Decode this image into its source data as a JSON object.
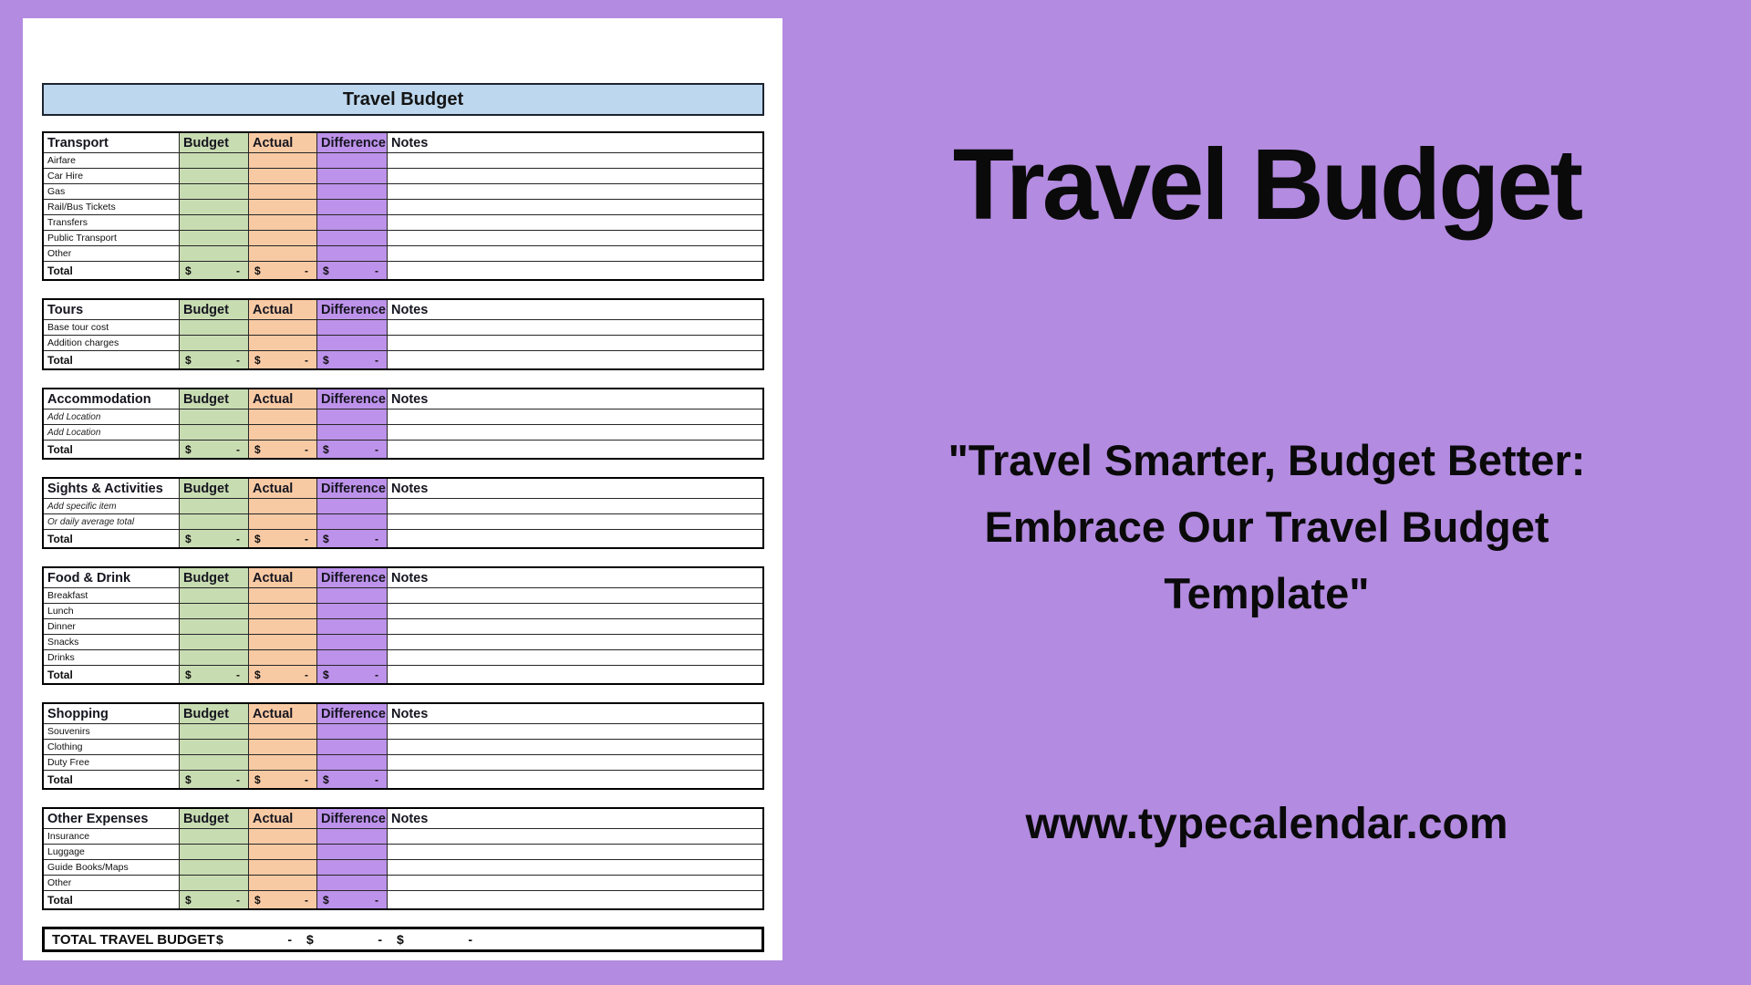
{
  "colors": {
    "bg": "#b38be0",
    "banner": "#bdd7ee",
    "budget": "#c8dcb2",
    "actual": "#f8caa4",
    "difference": "#bd92ea"
  },
  "sheet": {
    "banner_title": "Travel Budget",
    "column_headers": [
      "Budget",
      "Actual",
      "Difference",
      "Notes"
    ],
    "total_label": "Total",
    "money": {
      "currency": "$",
      "value": "-"
    },
    "sections": [
      {
        "title": "Transport",
        "items_italic": false,
        "items": [
          "Airfare",
          "Car Hire",
          "Gas",
          "Rail/Bus Tickets",
          "Transfers",
          "Public Transport",
          "Other"
        ]
      },
      {
        "title": "Tours",
        "items_italic": false,
        "items": [
          "Base tour cost",
          "Addition charges"
        ]
      },
      {
        "title": "Accommodation",
        "items_italic": true,
        "items": [
          "Add Location",
          "Add Location"
        ]
      },
      {
        "title": "Sights & Activities",
        "items_italic": true,
        "items": [
          "Add specific item",
          "Or daily average total"
        ]
      },
      {
        "title": "Food & Drink",
        "items_italic": false,
        "items": [
          "Breakfast",
          "Lunch",
          "Dinner",
          "Snacks",
          "Drinks"
        ]
      },
      {
        "title": "Shopping",
        "items_italic": false,
        "items": [
          "Souvenirs",
          "Clothing",
          "Duty Free"
        ]
      },
      {
        "title": "Other Expenses",
        "items_italic": false,
        "items": [
          "Insurance",
          "Luggage",
          "Guide Books/Maps",
          "Other"
        ]
      }
    ],
    "grand_total": {
      "label": "TOTAL TRAVEL BUDGET",
      "cells": [
        {
          "currency": "$",
          "value": "-"
        },
        {
          "currency": "$",
          "value": "-"
        },
        {
          "currency": "$",
          "value": "-"
        }
      ]
    }
  },
  "panel": {
    "title": "Travel Budget",
    "quote": "\"Travel Smarter, Budget Better:\nEmbrace Our Travel Budget\nTemplate\"",
    "website": "www.typecalendar.com"
  }
}
